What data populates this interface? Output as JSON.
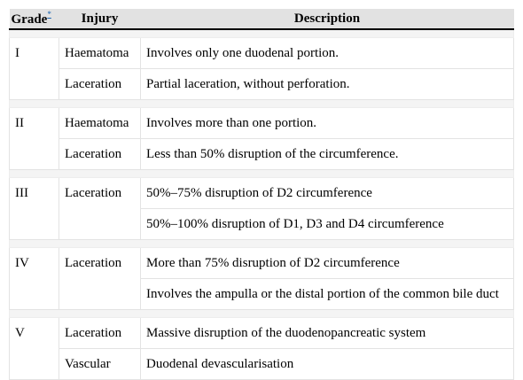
{
  "header": {
    "grade": "Grade",
    "grade_footnote": "*",
    "injury": "Injury",
    "description": "Description"
  },
  "groups": [
    {
      "grade": "I",
      "rows": [
        {
          "injury": "Haematoma",
          "description": "Involves only one duodenal portion."
        },
        {
          "injury": "Laceration",
          "description": "Partial laceration, without perforation."
        }
      ]
    },
    {
      "grade": "II",
      "rows": [
        {
          "injury": "Haematoma",
          "description": "Involves more than one portion."
        },
        {
          "injury": "Laceration",
          "description": "Less than 50% disruption of the circumference."
        }
      ]
    },
    {
      "grade": "III",
      "rows": [
        {
          "injury": "Laceration",
          "description": "50%–75% disruption of D2 circumference"
        },
        {
          "injury": "",
          "description": "50%–100% disruption of D1, D3 and D4 circumference"
        }
      ]
    },
    {
      "grade": "IV",
      "rows": [
        {
          "injury": "Laceration",
          "description": "More than 75% disruption of D2 circumference"
        },
        {
          "injury": "",
          "description": "Involves the ampulla or the distal portion of the common bile duct"
        }
      ]
    },
    {
      "grade": "V",
      "rows": [
        {
          "injury": "Laceration",
          "description": "Massive disruption of the duodenopancreatic system"
        },
        {
          "injury": "Vascular",
          "description": "Duodenal devascularisation"
        }
      ]
    }
  ]
}
